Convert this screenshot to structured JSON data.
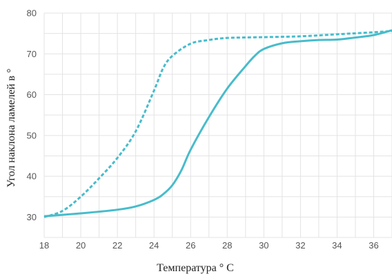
{
  "chart_data": {
    "type": "line",
    "xlabel": "Температура ° C",
    "ylabel": "Угол наклона ламелей  в °",
    "xlim": [
      18,
      37
    ],
    "ylim": [
      25,
      80
    ],
    "x_ticks": [
      18,
      20,
      22,
      24,
      26,
      28,
      30,
      32,
      34,
      36
    ],
    "y_ticks": [
      30,
      40,
      50,
      60,
      70,
      80
    ],
    "grid": true,
    "color": "#47bccb",
    "series": [
      {
        "style": "dashed",
        "points": [
          [
            18,
            30
          ],
          [
            19,
            31.5
          ],
          [
            20,
            35
          ],
          [
            21,
            39.5
          ],
          [
            22,
            44.5
          ],
          [
            23,
            51
          ],
          [
            24,
            61
          ],
          [
            24.5,
            66.5
          ],
          [
            25,
            69.5
          ],
          [
            26,
            72.5
          ],
          [
            27,
            73.4
          ],
          [
            28,
            73.9
          ],
          [
            30,
            74.1
          ],
          [
            32,
            74.3
          ],
          [
            34,
            74.8
          ],
          [
            36,
            75.3
          ],
          [
            37,
            75.6
          ]
        ]
      },
      {
        "style": "solid",
        "points": [
          [
            18,
            30.2
          ],
          [
            20,
            30.9
          ],
          [
            22,
            31.8
          ],
          [
            23,
            32.6
          ],
          [
            24,
            34.2
          ],
          [
            24.5,
            35.6
          ],
          [
            25,
            37.8
          ],
          [
            25.5,
            41.5
          ],
          [
            26,
            46.5
          ],
          [
            27,
            54.5
          ],
          [
            28,
            61.5
          ],
          [
            29,
            67
          ],
          [
            29.5,
            69.5
          ],
          [
            30,
            71.2
          ],
          [
            31,
            72.6
          ],
          [
            32,
            73.1
          ],
          [
            33,
            73.4
          ],
          [
            34,
            73.5
          ],
          [
            35,
            74
          ],
          [
            36,
            74.6
          ],
          [
            37,
            75.8
          ]
        ]
      }
    ]
  }
}
